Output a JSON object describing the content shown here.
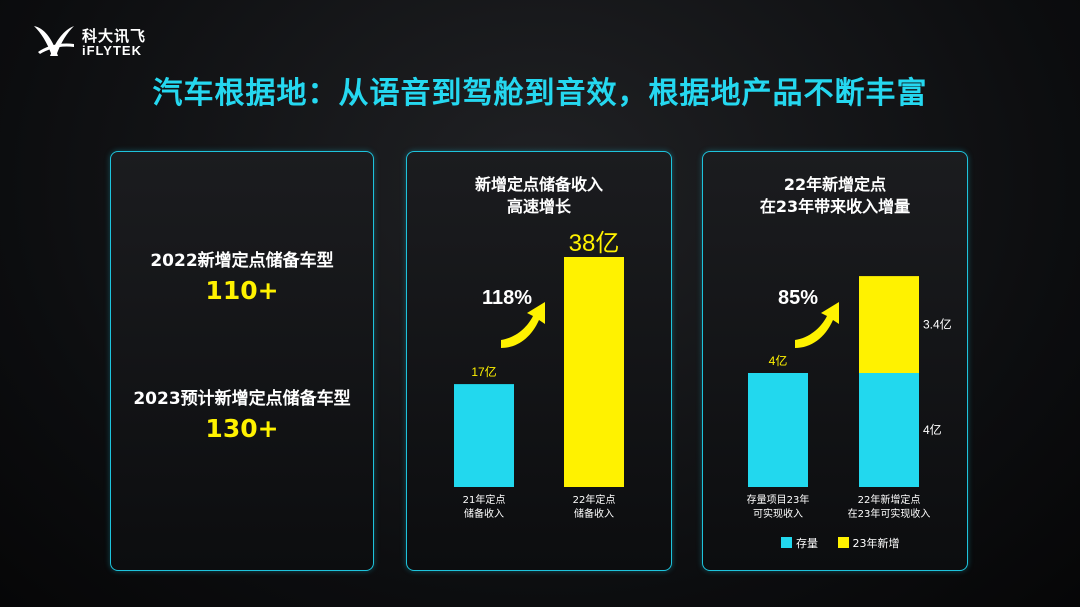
{
  "logo": {
    "cn": "科大讯飞",
    "en": "iFLYTEK"
  },
  "title": "汽车根据地：从语音到驾舱到音效，根据地产品不断丰富",
  "panel1": {
    "items": [
      {
        "label": "2022新增定点储备车型",
        "value": "110+"
      },
      {
        "label": "2023预计新增定点储备车型",
        "value": "130+"
      }
    ]
  },
  "colors": {
    "cyan": "#22d8ee",
    "yellow": "#fff200",
    "arrow": "#fff200"
  },
  "chart_data": [
    {
      "type": "bar",
      "title": [
        "新增定点储备收入",
        "高速增长"
      ],
      "categories": [
        [
          "21年定点",
          "储备收入"
        ],
        [
          "22年定点",
          "储备收入"
        ]
      ],
      "values": [
        17,
        38
      ],
      "value_labels": [
        "17亿",
        "38亿"
      ],
      "bar_colors": [
        "#22d8ee",
        "#fff200"
      ],
      "growth_label": "118%"
    },
    {
      "type": "bar",
      "stacked": true,
      "title": [
        "22年新增定点",
        "在23年带来收入增量"
      ],
      "categories": [
        [
          "存量项目23年",
          "可实现收入"
        ],
        [
          "22年新增定点",
          "在23年可实现收入"
        ]
      ],
      "series": [
        {
          "name": "存量",
          "color": "#22d8ee",
          "values": [
            4,
            4
          ]
        },
        {
          "name": "23年新增",
          "color": "#fff200",
          "values": [
            0,
            3.4
          ]
        }
      ],
      "value_labels": {
        "bar1_top": "4亿",
        "bar2_segments": [
          "4亿",
          "3.4亿"
        ]
      },
      "growth_label": "85%"
    }
  ]
}
